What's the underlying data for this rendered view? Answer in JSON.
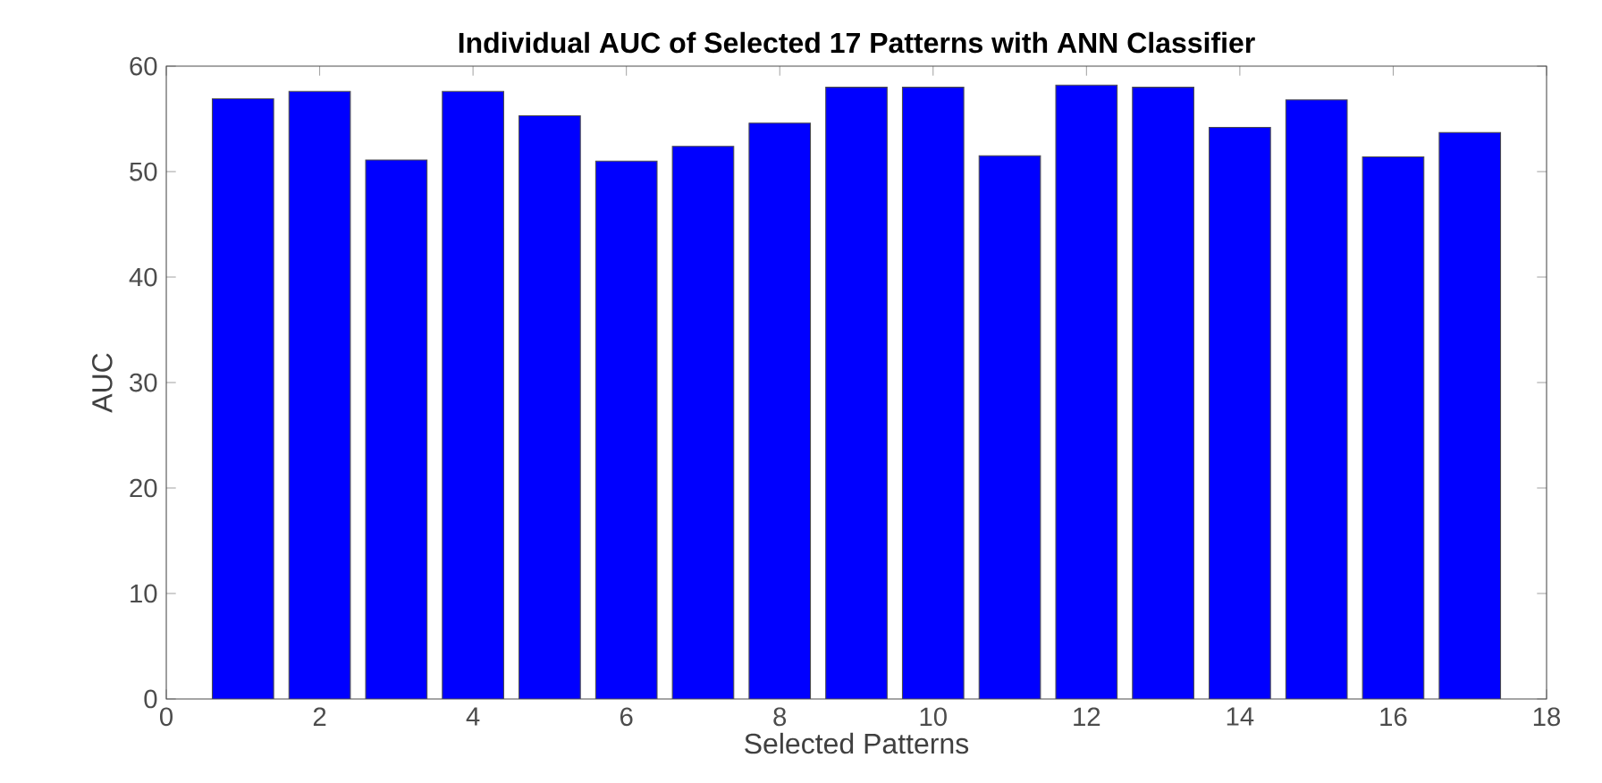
{
  "chart_data": {
    "type": "bar",
    "title": "Individual AUC of Selected 17 Patterns with ANN Classifier",
    "xlabel": "Selected Patterns",
    "ylabel": "AUC",
    "x": [
      1,
      2,
      3,
      4,
      5,
      6,
      7,
      8,
      9,
      10,
      11,
      12,
      13,
      14,
      15,
      16,
      17
    ],
    "values": [
      56.9,
      57.6,
      51.1,
      57.6,
      55.3,
      51.0,
      52.4,
      54.6,
      58.0,
      58.0,
      51.5,
      58.2,
      58.0,
      54.2,
      56.8,
      51.4,
      53.7
    ],
    "color": "#0000ff",
    "xlim": [
      0,
      18
    ],
    "xticks": [
      0,
      2,
      4,
      6,
      8,
      10,
      12,
      14,
      16,
      18
    ],
    "ylim": [
      0,
      60
    ],
    "yticks": [
      0,
      10,
      20,
      30,
      40,
      50,
      60
    ],
    "grid": false
  }
}
